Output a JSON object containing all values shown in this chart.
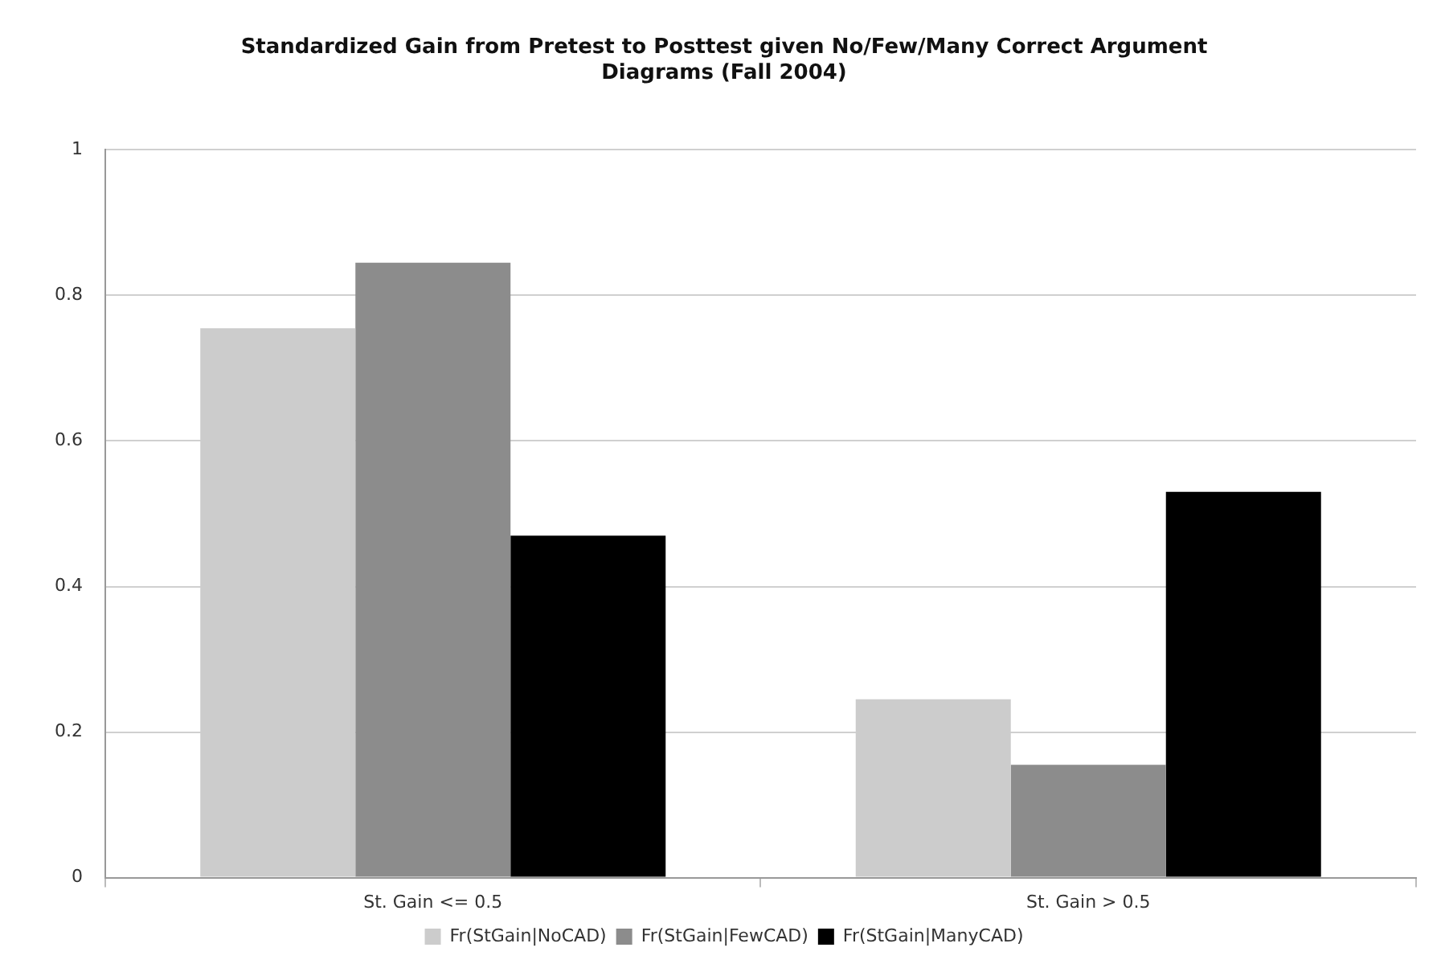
{
  "chart_data": {
    "type": "bar",
    "title": "Standardized Gain from Pretest to Posttest given No/Few/Many Correct Argument Diagrams (Fall 2004)",
    "categories": [
      "St. Gain <= 0.5",
      "St. Gain > 0.5"
    ],
    "series": [
      {
        "name": "Fr(StGain|NoCAD)",
        "color": "#cccccc",
        "values": [
          0.755,
          0.245
        ]
      },
      {
        "name": "Fr(StGain|FewCAD)",
        "color": "#8c8c8c",
        "values": [
          0.845,
          0.155
        ]
      },
      {
        "name": "Fr(StGain|ManyCAD)",
        "color": "#000000",
        "values": [
          0.47,
          0.53
        ]
      }
    ],
    "ylim": [
      0,
      1
    ],
    "yticks": [
      0,
      0.2,
      0.4,
      0.6,
      0.8,
      1
    ],
    "grid": "y",
    "legend": "bottom"
  }
}
